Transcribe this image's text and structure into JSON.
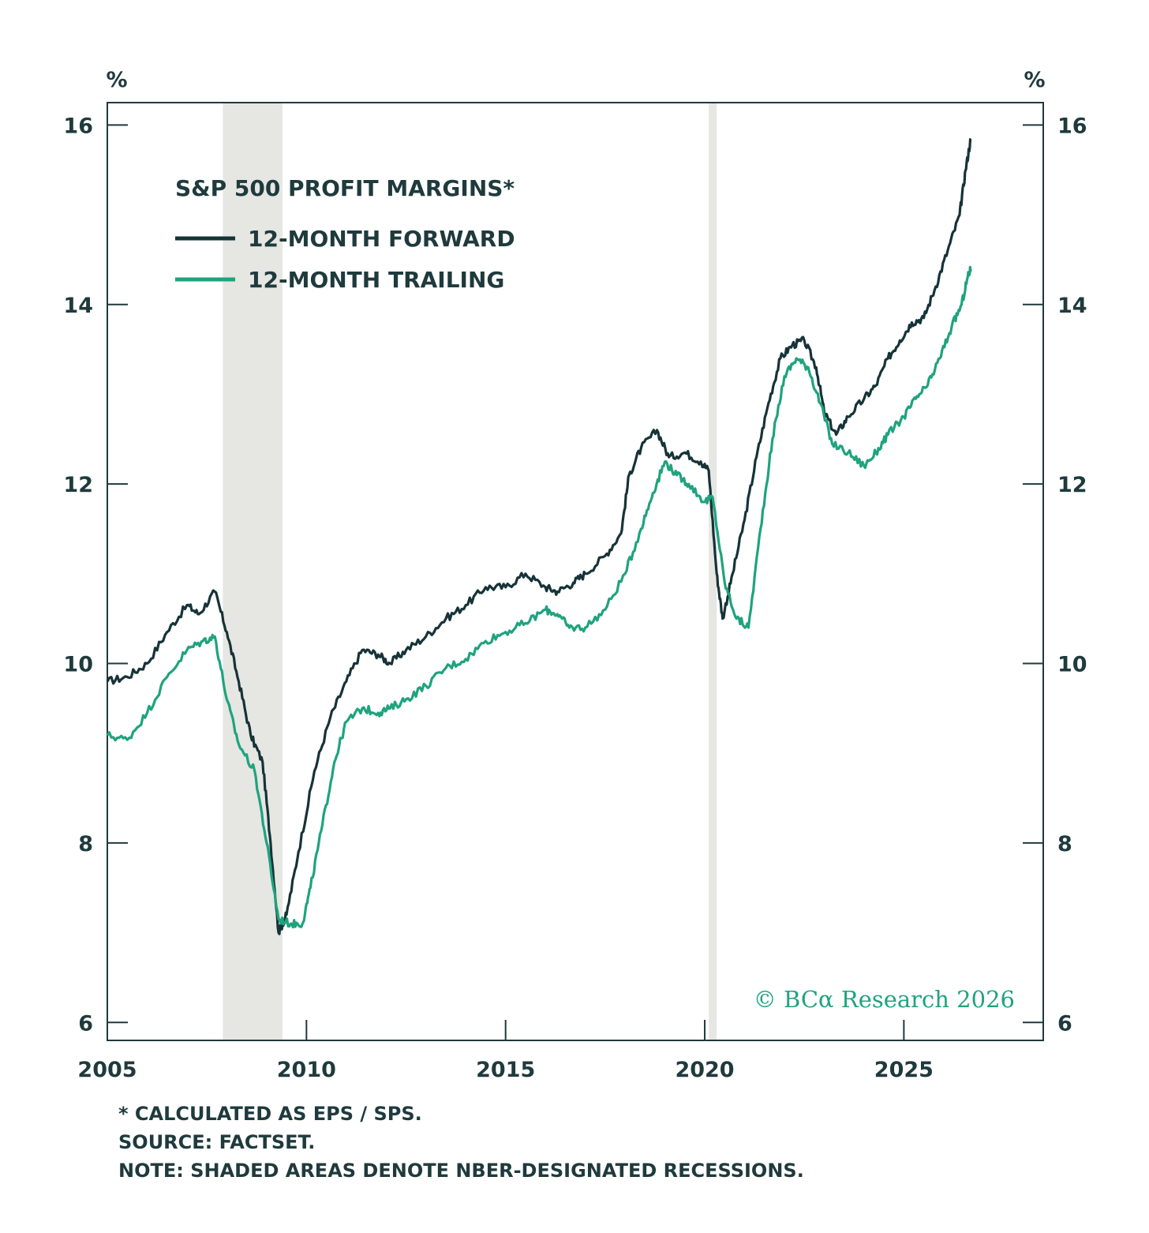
{
  "chart_data": {
    "type": "line",
    "title": "S&P 500 PROFIT MARGINS*",
    "ylabel_left": "%",
    "ylabel_right": "%",
    "xlim": [
      2005,
      2028.5
    ],
    "ylim": [
      5.8,
      16.25
    ],
    "x_ticks": [
      2005,
      2010,
      2015,
      2020,
      2025
    ],
    "y_ticks": [
      6,
      8,
      10,
      12,
      14,
      16
    ],
    "grid": false,
    "legend_position": "top-left",
    "recessions": [
      [
        2007.9,
        2009.4
      ],
      [
        2020.1,
        2020.3
      ]
    ],
    "series": [
      {
        "name": "12-MONTH FORWARD",
        "color": "#163338",
        "points": [
          [
            2005.0,
            9.8
          ],
          [
            2005.5,
            9.85
          ],
          [
            2006.0,
            10.0
          ],
          [
            2006.5,
            10.35
          ],
          [
            2007.0,
            10.65
          ],
          [
            2007.3,
            10.55
          ],
          [
            2007.7,
            10.8
          ],
          [
            2008.0,
            10.35
          ],
          [
            2008.3,
            9.8
          ],
          [
            2008.6,
            9.2
          ],
          [
            2008.9,
            8.9
          ],
          [
            2009.1,
            8.0
          ],
          [
            2009.3,
            7.0
          ],
          [
            2009.5,
            7.2
          ],
          [
            2009.8,
            7.9
          ],
          [
            2010.2,
            8.8
          ],
          [
            2010.6,
            9.4
          ],
          [
            2011.0,
            9.8
          ],
          [
            2011.4,
            10.15
          ],
          [
            2011.8,
            10.1
          ],
          [
            2012.1,
            10.0
          ],
          [
            2012.5,
            10.15
          ],
          [
            2013.0,
            10.3
          ],
          [
            2013.5,
            10.5
          ],
          [
            2014.0,
            10.65
          ],
          [
            2014.5,
            10.85
          ],
          [
            2015.0,
            10.85
          ],
          [
            2015.5,
            11.0
          ],
          [
            2016.0,
            10.85
          ],
          [
            2016.3,
            10.8
          ],
          [
            2016.7,
            10.9
          ],
          [
            2017.0,
            11.0
          ],
          [
            2017.5,
            11.2
          ],
          [
            2017.9,
            11.45
          ],
          [
            2018.1,
            12.1
          ],
          [
            2018.4,
            12.4
          ],
          [
            2018.8,
            12.6
          ],
          [
            2019.1,
            12.3
          ],
          [
            2019.5,
            12.35
          ],
          [
            2019.9,
            12.25
          ],
          [
            2020.1,
            12.15
          ],
          [
            2020.3,
            11.0
          ],
          [
            2020.45,
            10.5
          ],
          [
            2020.7,
            11.0
          ],
          [
            2021.0,
            11.6
          ],
          [
            2021.3,
            12.3
          ],
          [
            2021.6,
            12.9
          ],
          [
            2021.9,
            13.4
          ],
          [
            2022.2,
            13.55
          ],
          [
            2022.5,
            13.6
          ],
          [
            2022.8,
            13.3
          ],
          [
            2023.0,
            12.8
          ],
          [
            2023.3,
            12.55
          ],
          [
            2023.6,
            12.75
          ],
          [
            2024.0,
            12.95
          ],
          [
            2024.3,
            13.1
          ],
          [
            2024.6,
            13.4
          ],
          [
            2024.9,
            13.6
          ],
          [
            2025.2,
            13.8
          ],
          [
            2025.5,
            13.85
          ],
          [
            2025.8,
            14.2
          ],
          [
            2026.1,
            14.6
          ],
          [
            2026.4,
            15.0
          ],
          [
            2026.55,
            15.5
          ],
          [
            2026.68,
            15.85
          ]
        ]
      },
      {
        "name": "12-MONTH TRAILING",
        "color": "#1ea37e",
        "points": [
          [
            2005.0,
            9.2
          ],
          [
            2005.5,
            9.15
          ],
          [
            2006.0,
            9.45
          ],
          [
            2006.5,
            9.85
          ],
          [
            2007.0,
            10.15
          ],
          [
            2007.4,
            10.25
          ],
          [
            2007.7,
            10.3
          ],
          [
            2008.0,
            9.6
          ],
          [
            2008.3,
            9.1
          ],
          [
            2008.7,
            8.8
          ],
          [
            2009.0,
            8.0
          ],
          [
            2009.3,
            7.15
          ],
          [
            2009.6,
            7.1
          ],
          [
            2009.9,
            7.1
          ],
          [
            2010.1,
            7.5
          ],
          [
            2010.4,
            8.2
          ],
          [
            2010.7,
            8.9
          ],
          [
            2011.0,
            9.35
          ],
          [
            2011.4,
            9.5
          ],
          [
            2011.8,
            9.45
          ],
          [
            2012.1,
            9.5
          ],
          [
            2012.5,
            9.6
          ],
          [
            2013.0,
            9.75
          ],
          [
            2013.5,
            9.95
          ],
          [
            2014.0,
            10.05
          ],
          [
            2014.5,
            10.25
          ],
          [
            2015.0,
            10.35
          ],
          [
            2015.5,
            10.45
          ],
          [
            2016.0,
            10.6
          ],
          [
            2016.3,
            10.55
          ],
          [
            2016.6,
            10.4
          ],
          [
            2017.0,
            10.4
          ],
          [
            2017.5,
            10.6
          ],
          [
            2018.0,
            11.0
          ],
          [
            2018.4,
            11.5
          ],
          [
            2018.7,
            11.9
          ],
          [
            2019.0,
            12.25
          ],
          [
            2019.3,
            12.1
          ],
          [
            2019.6,
            12.0
          ],
          [
            2020.0,
            11.8
          ],
          [
            2020.2,
            11.85
          ],
          [
            2020.5,
            10.9
          ],
          [
            2020.8,
            10.5
          ],
          [
            2021.1,
            10.4
          ],
          [
            2021.4,
            11.5
          ],
          [
            2021.7,
            12.5
          ],
          [
            2022.0,
            13.2
          ],
          [
            2022.3,
            13.4
          ],
          [
            2022.6,
            13.3
          ],
          [
            2022.9,
            12.9
          ],
          [
            2023.2,
            12.45
          ],
          [
            2023.6,
            12.35
          ],
          [
            2024.0,
            12.2
          ],
          [
            2024.3,
            12.35
          ],
          [
            2024.6,
            12.55
          ],
          [
            2025.0,
            12.75
          ],
          [
            2025.3,
            12.95
          ],
          [
            2025.6,
            13.1
          ],
          [
            2025.9,
            13.4
          ],
          [
            2026.2,
            13.75
          ],
          [
            2026.45,
            14.0
          ],
          [
            2026.6,
            14.3
          ],
          [
            2026.68,
            14.4
          ]
        ]
      }
    ],
    "annotations": {
      "copyright": "© BCα Research 2026"
    }
  },
  "notes": [
    "* CALCULATED AS EPS / SPS.",
    "SOURCE: FACTSET.",
    "NOTE: SHADED AREAS DENOTE NBER-DESIGNATED RECESSIONS."
  ],
  "colors": {
    "axis": "#1f3a3d",
    "recession_shade": "#e6e6e3",
    "copyright": "#1fa37f"
  }
}
